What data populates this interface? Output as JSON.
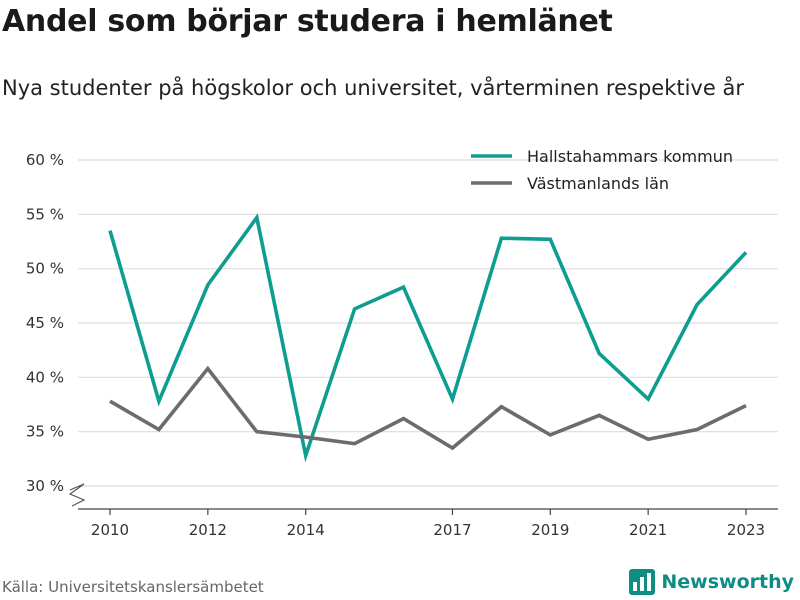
{
  "header": {
    "title": "Andel som börjar studera i hemlänet",
    "subtitle": "Nya studenter på högskolor och universitet, vårterminen respektive år"
  },
  "footer": {
    "source": "Källa: Universitetskanslersämbetet",
    "brand": "Newsworthy",
    "brand_icon": "bar-chart-logo-icon",
    "brand_color": "#0e8d84"
  },
  "chart_data": {
    "type": "line",
    "x": [
      2010,
      2011,
      2012,
      2013,
      2014,
      2015,
      2016,
      2017,
      2018,
      2019,
      2020,
      2021,
      2022,
      2023
    ],
    "xticks": [
      2010,
      2012,
      2014,
      2017,
      2019,
      2021,
      2023
    ],
    "ylim": [
      30,
      60
    ],
    "yticks": [
      30,
      35,
      40,
      45,
      50,
      55,
      60
    ],
    "ytick_suffix": " %",
    "axis_break": true,
    "grid": true,
    "legend_position": "top-right",
    "series": [
      {
        "name": "Hallstahammars kommun",
        "color": "#0e9d91",
        "values": [
          53.5,
          37.8,
          48.5,
          54.7,
          32.8,
          46.3,
          48.3,
          38.0,
          52.8,
          52.7,
          42.2,
          38.0,
          46.7,
          51.5
        ]
      },
      {
        "name": "Västmanlands län",
        "color": "#6b6b70",
        "values": [
          37.8,
          35.2,
          40.8,
          35.0,
          34.5,
          33.9,
          36.2,
          33.5,
          37.3,
          34.7,
          36.5,
          34.3,
          35.2,
          37.4
        ]
      }
    ]
  }
}
